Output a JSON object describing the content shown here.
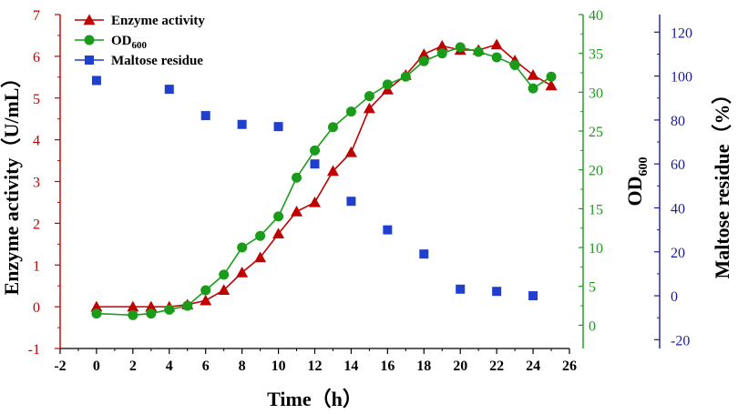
{
  "chart_data": {
    "type": "line",
    "x_axis": {
      "title": "Time（h）",
      "range": [
        -2,
        26
      ],
      "ticks": [
        -2,
        0,
        2,
        4,
        6,
        8,
        10,
        12,
        14,
        16,
        18,
        20,
        22,
        24,
        26
      ]
    },
    "y_axes": [
      {
        "id": "enzyme",
        "position": "left",
        "title": "Enzyme activity（U/mL）",
        "range": [
          -1,
          7
        ],
        "ticks": [
          -1,
          0,
          1,
          2,
          3,
          4,
          5,
          6,
          7
        ],
        "color": "#c00000"
      },
      {
        "id": "od",
        "position": "right",
        "title_main": "OD",
        "title_sub": "600",
        "range": [
          -3,
          40
        ],
        "ticks": [
          0,
          5,
          10,
          15,
          20,
          25,
          30,
          35,
          40
        ],
        "color": "#1a9b1a"
      },
      {
        "id": "maltose",
        "position": "far-right",
        "title": "Maltose residue（%）",
        "range": [
          -24,
          128
        ],
        "ticks": [
          -20,
          0,
          20,
          40,
          60,
          80,
          100,
          120
        ],
        "color": "#1a1aa0"
      }
    ],
    "series": [
      {
        "name": "Enzyme activity",
        "axis": "enzyme",
        "marker": "triangle",
        "color": "#c00000",
        "line": true,
        "x": [
          0,
          2,
          3,
          4,
          5,
          6,
          7,
          8,
          9,
          10,
          11,
          12,
          13,
          14,
          15,
          16,
          17,
          18,
          19,
          20,
          21,
          22,
          23,
          24,
          25
        ],
        "y": [
          0.0,
          0.0,
          0.0,
          0.0,
          0.05,
          0.15,
          0.4,
          0.82,
          1.18,
          1.75,
          2.28,
          2.5,
          3.25,
          3.7,
          4.75,
          5.2,
          5.55,
          6.05,
          6.25,
          6.15,
          6.15,
          6.28,
          5.9,
          5.55,
          5.3
        ]
      },
      {
        "name": "OD",
        "name_sub": "600",
        "axis": "od",
        "marker": "circle",
        "color": "#1a9b1a",
        "line": true,
        "x": [
          0,
          2,
          3,
          4,
          5,
          6,
          7,
          8,
          9,
          10,
          11,
          12,
          13,
          14,
          15,
          16,
          17,
          18,
          19,
          20,
          21,
          22,
          23,
          24,
          25
        ],
        "y": [
          1.5,
          1.3,
          1.5,
          2.0,
          2.5,
          4.5,
          6.5,
          10.0,
          11.5,
          14.0,
          19.0,
          22.5,
          25.5,
          27.5,
          29.5,
          31.0,
          32.0,
          34.0,
          35.0,
          35.8,
          35.2,
          34.5,
          33.5,
          30.5,
          32.0
        ]
      },
      {
        "name": "Maltose residue",
        "axis": "maltose",
        "marker": "square",
        "color": "#1f3fd0",
        "line": false,
        "x": [
          0,
          4,
          6,
          8,
          10,
          12,
          14,
          16,
          18,
          20,
          22,
          24
        ],
        "y": [
          98,
          94,
          82,
          78,
          77,
          60,
          43,
          30,
          19,
          3,
          2,
          0
        ]
      }
    ],
    "legend": {
      "position": "top-left"
    }
  }
}
